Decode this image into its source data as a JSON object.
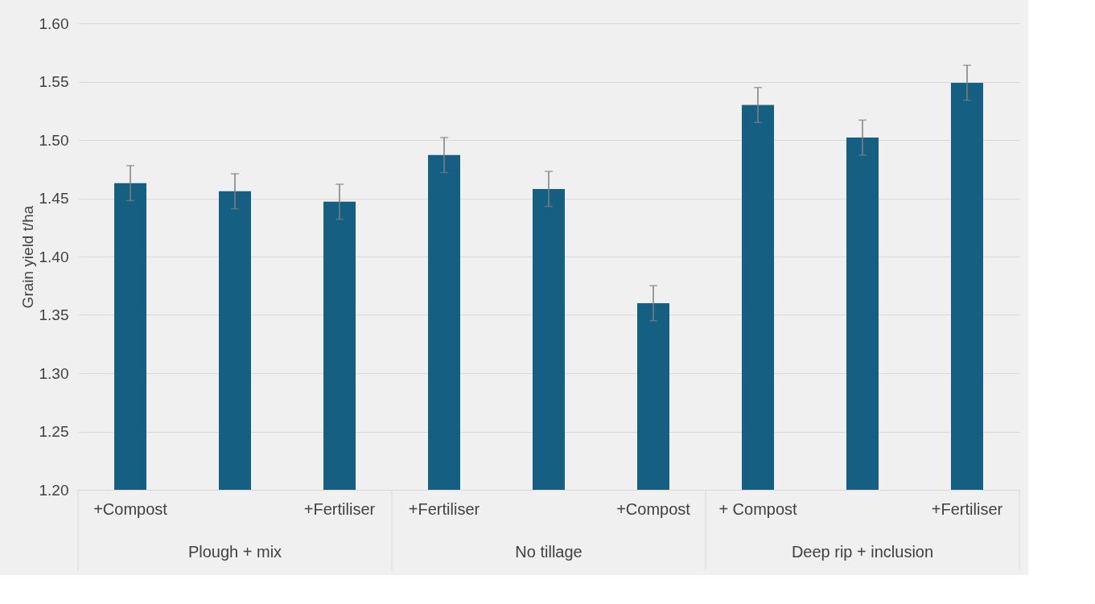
{
  "chart_data": {
    "type": "bar",
    "ylabel": "Grain yield t/ha",
    "categories": [
      "+Compost",
      null,
      "+Fertiliser",
      "+Fertiliser",
      null,
      "+Compost",
      "+ Compost",
      null,
      "+Fertiliser"
    ],
    "annotations": [
      "Plough + mix",
      "No tillage",
      "Deep rip + inclusion"
    ],
    "values": [
      1.463,
      1.456,
      1.447,
      1.487,
      1.458,
      1.36,
      1.53,
      1.502,
      1.549
    ],
    "errors": [
      0.015,
      0.015,
      0.015,
      0.015,
      0.015,
      0.015,
      0.015,
      0.015,
      0.015
    ],
    "color": "#155f82",
    "ylim": [
      1.2,
      1.6
    ],
    "yticks": [
      {
        "value": 1.2,
        "label": "1.20"
      },
      {
        "value": 1.25,
        "label": "1.25"
      },
      {
        "value": 1.3,
        "label": "1.30"
      },
      {
        "value": 1.35,
        "label": "1.35"
      },
      {
        "value": 1.4,
        "label": "1.40"
      },
      {
        "value": 1.45,
        "label": "1.45"
      },
      {
        "value": 1.5,
        "label": "1.50"
      },
      {
        "value": 1.55,
        "label": "1.55"
      },
      {
        "value": 1.6,
        "label": "1.60"
      }
    ],
    "grid": "y"
  }
}
